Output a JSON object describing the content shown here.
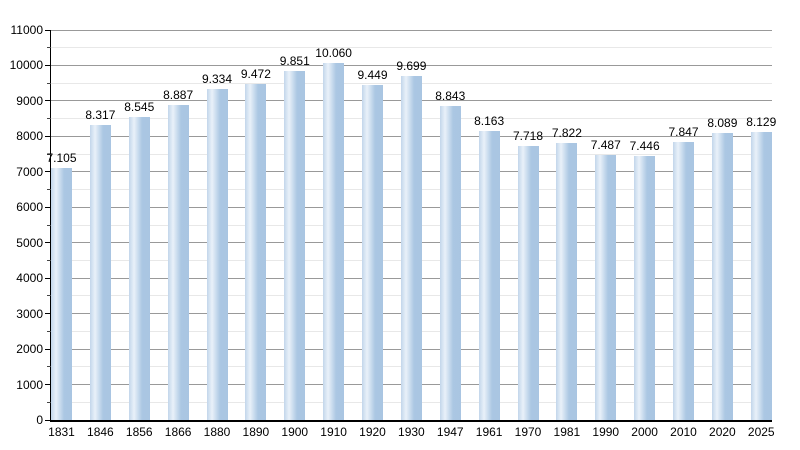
{
  "chart_data": {
    "type": "bar",
    "title": "",
    "xlabel": "",
    "ylabel": "",
    "categories": [
      "1831",
      "1846",
      "1856",
      "1866",
      "1880",
      "1890",
      "1900",
      "1910",
      "1920",
      "1930",
      "1947",
      "1961",
      "1970",
      "1981",
      "1990",
      "2000",
      "2010",
      "2020",
      "2025"
    ],
    "values": [
      7105,
      8317,
      8545,
      8887,
      9334,
      9472,
      9851,
      10060,
      9449,
      9699,
      8843,
      8163,
      7718,
      7822,
      7487,
      7446,
      7847,
      8089,
      8129
    ],
    "value_labels": [
      "7.105",
      "8.317",
      "8.545",
      "8.887",
      "9.334",
      "9.472",
      "9.851",
      "10.060",
      "9.449",
      "9.699",
      "8.843",
      "8.163",
      "7.718",
      "7.822",
      "7.487",
      "7.446",
      "7.847",
      "8.089",
      "8.129"
    ],
    "ylim": [
      0,
      11000
    ],
    "y_major_step": 1000,
    "y_minor_step": 500,
    "y_tick_labels": [
      "0",
      "1000",
      "2000",
      "3000",
      "4000",
      "5000",
      "6000",
      "7000",
      "8000",
      "9000",
      "10000",
      "11000"
    ],
    "grid": "on",
    "legend_position": "none",
    "colors": {
      "bar_fill": "#abc7e3",
      "bar_highlight": "#e9f1f9",
      "grid_major": "#999999",
      "grid_minor": "#e8e8e8",
      "axis": "#000000",
      "text": "#000000",
      "background": "#ffffff"
    }
  }
}
